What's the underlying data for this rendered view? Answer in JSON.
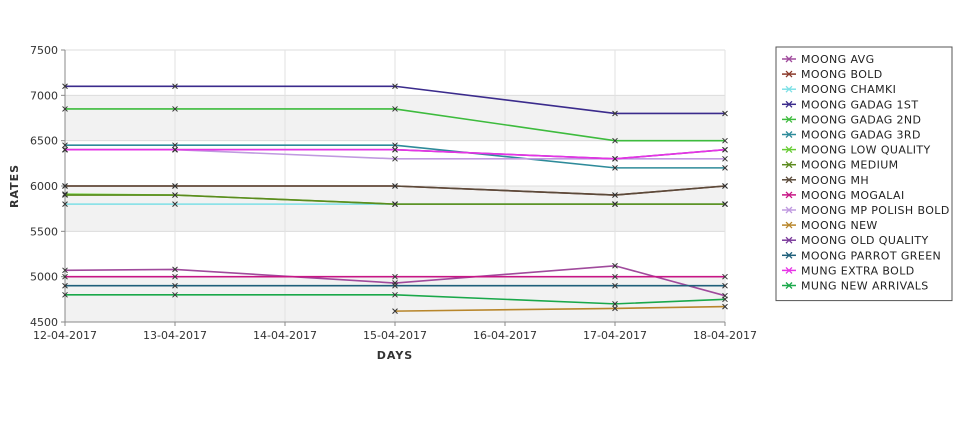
{
  "chart_data": {
    "type": "line",
    "xlabel": "DAYS",
    "ylabel": "RATES",
    "categories": [
      "12-04-2017",
      "13-04-2017",
      "14-04-2017",
      "15-04-2017",
      "16-04-2017",
      "17-04-2017",
      "18-04-2017"
    ],
    "ylim": [
      4500,
      7500
    ],
    "yticks": [
      4500,
      5000,
      5500,
      6000,
      6500,
      7000,
      7500
    ],
    "grid": true,
    "legend_position": "right",
    "series": [
      {
        "name": "MOONG AVG",
        "color": "#a04a9c",
        "points": [
          [
            0,
            5070
          ],
          [
            1,
            5080
          ],
          [
            3,
            4930
          ],
          [
            5,
            5120
          ],
          [
            6,
            4790
          ]
        ]
      },
      {
        "name": "MOONG BOLD",
        "color": "#8b3a2b",
        "points": [
          [
            0,
            6000
          ],
          [
            1,
            6000
          ],
          [
            3,
            6000
          ],
          [
            5,
            5900
          ],
          [
            6,
            6000
          ]
        ]
      },
      {
        "name": "MOONG CHAMKI",
        "color": "#7ee0e6",
        "points": [
          [
            0,
            5800
          ],
          [
            1,
            5800
          ],
          [
            3,
            5800
          ],
          [
            5,
            5800
          ],
          [
            6,
            5800
          ]
        ]
      },
      {
        "name": "MOONG GADAG 1ST",
        "color": "#3b2b8c",
        "points": [
          [
            0,
            7100
          ],
          [
            1,
            7100
          ],
          [
            3,
            7100
          ],
          [
            5,
            6800
          ],
          [
            6,
            6800
          ]
        ]
      },
      {
        "name": "MOONG GADAG 2ND",
        "color": "#3dbb3d",
        "points": [
          [
            0,
            6850
          ],
          [
            1,
            6850
          ],
          [
            3,
            6850
          ],
          [
            5,
            6500
          ],
          [
            6,
            6500
          ]
        ]
      },
      {
        "name": "MOONG GADAG 3RD",
        "color": "#2e8b9a",
        "points": [
          [
            0,
            6450
          ],
          [
            1,
            6450
          ],
          [
            3,
            6450
          ],
          [
            5,
            6200
          ],
          [
            6,
            6200
          ]
        ]
      },
      {
        "name": "MOONG LOW QUALITY",
        "color": "#66cc33",
        "points": [
          [
            0,
            5910
          ],
          [
            1,
            5900
          ],
          [
            3,
            5800
          ],
          [
            5,
            5800
          ],
          [
            6,
            5800
          ]
        ]
      },
      {
        "name": "MOONG MEDIUM",
        "color": "#5c8a1e",
        "points": [
          [
            0,
            5900
          ],
          [
            1,
            5900
          ],
          [
            3,
            5800
          ],
          [
            5,
            5800
          ],
          [
            6,
            5800
          ]
        ]
      },
      {
        "name": "MOONG MH",
        "color": "#5a4a3a",
        "points": [
          [
            0,
            6000
          ],
          [
            1,
            6000
          ],
          [
            3,
            6000
          ],
          [
            5,
            5900
          ],
          [
            6,
            6000
          ]
        ]
      },
      {
        "name": "MOONG MOGALAI",
        "color": "#c71585",
        "points": [
          [
            0,
            5000
          ],
          [
            1,
            5000
          ],
          [
            3,
            5000
          ],
          [
            5,
            5000
          ],
          [
            6,
            5000
          ]
        ]
      },
      {
        "name": "MOONG MP POLISH BOLD",
        "color": "#c09ae0",
        "points": [
          [
            0,
            6400
          ],
          [
            1,
            6400
          ],
          [
            3,
            6300
          ],
          [
            5,
            6300
          ],
          [
            6,
            6300
          ]
        ]
      },
      {
        "name": "MOONG NEW",
        "color": "#b8862b",
        "points": [
          [
            3,
            4620
          ],
          [
            5,
            4650
          ],
          [
            6,
            4670
          ]
        ]
      },
      {
        "name": "MOONG OLD QUALITY",
        "color": "#7a3a9a",
        "points": [
          [
            0,
            6400
          ],
          [
            1,
            6400
          ],
          [
            3,
            6400
          ],
          [
            5,
            6300
          ],
          [
            6,
            6400
          ]
        ]
      },
      {
        "name": "MOONG PARROT GREEN",
        "color": "#1f5f7a",
        "points": [
          [
            0,
            4900
          ],
          [
            1,
            4900
          ],
          [
            3,
            4900
          ],
          [
            5,
            4900
          ],
          [
            6,
            4900
          ]
        ]
      },
      {
        "name": "MUNG EXTRA BOLD",
        "color": "#e633e6",
        "points": [
          [
            0,
            6400
          ],
          [
            1,
            6400
          ],
          [
            3,
            6400
          ],
          [
            5,
            6300
          ],
          [
            6,
            6400
          ]
        ]
      },
      {
        "name": "MUNG NEW ARRIVALS",
        "color": "#1aa84a",
        "points": [
          [
            0,
            4800
          ],
          [
            1,
            4800
          ],
          [
            3,
            4800
          ],
          [
            5,
            4700
          ],
          [
            6,
            4750
          ]
        ]
      }
    ]
  }
}
